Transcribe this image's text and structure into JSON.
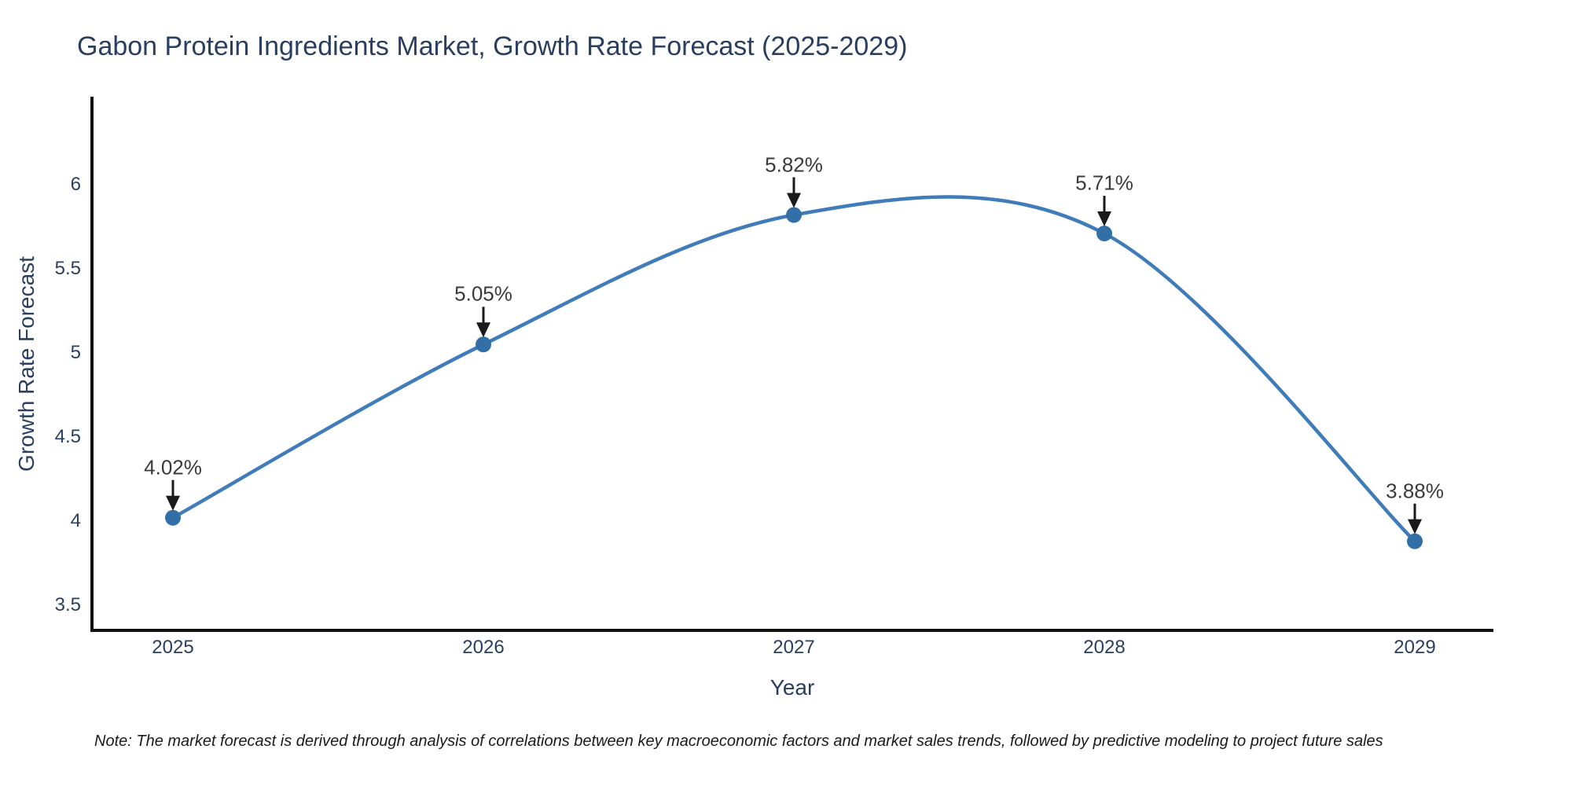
{
  "chart_title": "Gabon Protein Ingredients Market, Growth Rate Forecast (2025-2029)",
  "footnote": "Note: The market forecast is derived through analysis of correlations between key macroeconomic factors and market sales trends, followed by predictive modeling to project future sales",
  "chart_data": {
    "type": "line",
    "title": "Gabon Protein Ingredients Market, Growth Rate Forecast (2025-2029)",
    "xlabel": "Year",
    "ylabel": "Growth Rate Forecast",
    "x": [
      2025,
      2026,
      2027,
      2028,
      2029
    ],
    "values": [
      4.02,
      5.05,
      5.82,
      5.71,
      3.88
    ],
    "point_labels": [
      "4.02%",
      "5.05%",
      "5.82%",
      "5.71%",
      "3.88%"
    ],
    "x_tick_labels": [
      "2025",
      "2026",
      "2027",
      "2028",
      "2029"
    ],
    "y_tick_values": [
      3.5,
      4,
      4.5,
      5,
      5.5,
      6
    ],
    "y_tick_labels": [
      "3.5",
      "4",
      "4.5",
      "5",
      "5.5",
      "6"
    ],
    "ylim": [
      3.35,
      6.5
    ],
    "line_shape": "spline",
    "line_color": "#3f7cb9",
    "marker_color": "#336fa7",
    "axis_color": "#111111",
    "annotation_arrow_color": "#1a1a1a",
    "grid": false,
    "legend": false
  }
}
